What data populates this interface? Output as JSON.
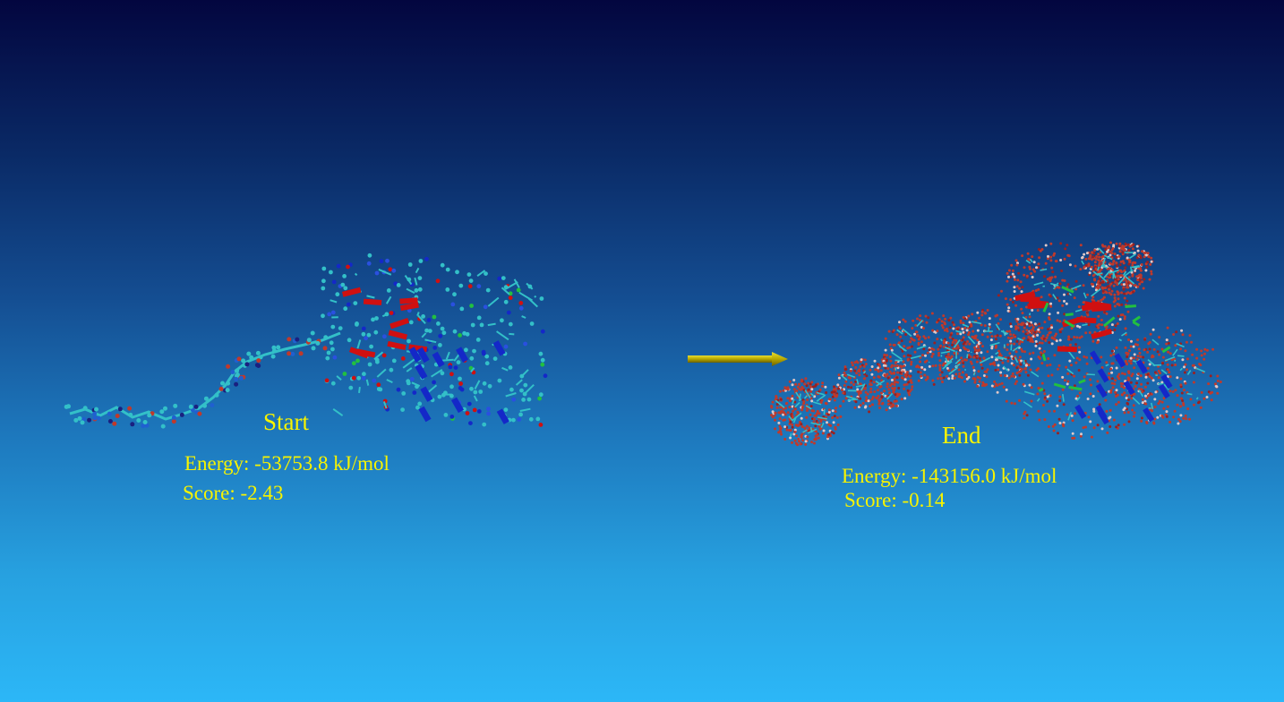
{
  "start": {
    "title": "Start",
    "energy": "Energy: -53753.8 kJ/mol",
    "score": "Score: -2.43"
  },
  "end": {
    "title": "End",
    "energy": "Energy: -143156.0 kJ/mol",
    "score": "Score: -0.14"
  },
  "colors": {
    "label": "#f7f300",
    "arrow": "#b7a800",
    "water_oxygen": "#c0392b",
    "backbone": "#33c0c8",
    "helix": "#1428c8",
    "sheet": "#d01010",
    "coil": "#22c040"
  }
}
